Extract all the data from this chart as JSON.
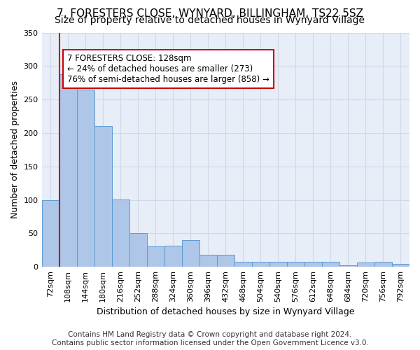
{
  "title": "7, FORESTERS CLOSE, WYNYARD, BILLINGHAM, TS22 5SZ",
  "subtitle": "Size of property relative to detached houses in Wynyard Village",
  "xlabel": "Distribution of detached houses by size in Wynyard Village",
  "ylabel": "Number of detached properties",
  "bar_color": "#aec6e8",
  "bar_edge_color": "#5b9bd5",
  "vline_color": "#cc0000",
  "categories": [
    "72sqm",
    "108sqm",
    "144sqm",
    "180sqm",
    "216sqm",
    "252sqm",
    "288sqm",
    "324sqm",
    "360sqm",
    "396sqm",
    "432sqm",
    "468sqm",
    "504sqm",
    "540sqm",
    "576sqm",
    "612sqm",
    "648sqm",
    "684sqm",
    "720sqm",
    "756sqm",
    "792sqm"
  ],
  "values": [
    100,
    288,
    265,
    210,
    101,
    50,
    30,
    32,
    40,
    18,
    18,
    7,
    7,
    7,
    7,
    8,
    8,
    2,
    6,
    7,
    4
  ],
  "vline_position": 0.5,
  "ylim": [
    0,
    350
  ],
  "yticks": [
    0,
    50,
    100,
    150,
    200,
    250,
    300,
    350
  ],
  "annotation_text": "7 FORESTERS CLOSE: 128sqm\n← 24% of detached houses are smaller (273)\n76% of semi-detached houses are larger (858) →",
  "footnote": "Contains HM Land Registry data © Crown copyright and database right 2024.\nContains public sector information licensed under the Open Government Licence v3.0.",
  "grid_color": "#d0d8e8",
  "background_color": "#e8eef8",
  "title_fontsize": 11,
  "subtitle_fontsize": 10,
  "annotation_fontsize": 8.5,
  "tick_fontsize": 8,
  "ylabel_fontsize": 9,
  "xlabel_fontsize": 9,
  "footnote_fontsize": 7.5
}
